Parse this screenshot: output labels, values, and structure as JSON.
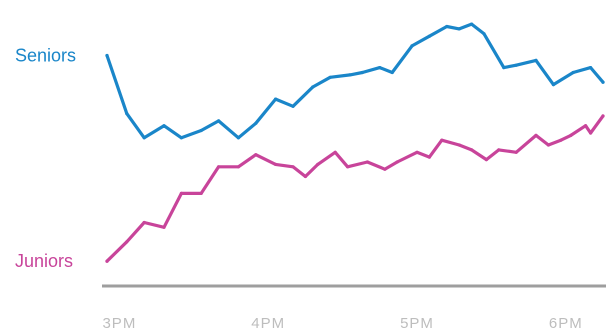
{
  "chart_data": {
    "type": "line",
    "title": "",
    "xlabel": "",
    "ylabel": "",
    "x_ticks": [
      "3PM",
      "4PM",
      "5PM",
      "6PM"
    ],
    "x_range": [
      "2:55PM",
      "6:15PM"
    ],
    "grid": false,
    "legend": "none (series labelled directly at left)",
    "axis_color": "#9e9e9e",
    "tick_color": "#bdbdbd",
    "series": [
      {
        "name": "Seniors",
        "color": "#1a86c9",
        "x": [
          "2:55PM",
          "3:03PM",
          "3:10PM",
          "3:18PM",
          "3:25PM",
          "3:33PM",
          "3:40PM",
          "3:48PM",
          "3:55PM",
          "4:03PM",
          "4:10PM",
          "4:18PM",
          "4:25PM",
          "4:33PM",
          "4:38PM",
          "4:45PM",
          "4:50PM",
          "4:58PM",
          "5:05PM",
          "5:12PM",
          "5:17PM",
          "5:22PM",
          "5:27PM",
          "5:35PM",
          "5:40PM",
          "5:48PM",
          "5:55PM",
          "6:03PM",
          "6:10PM",
          "6:15PM"
        ],
        "values": [
          87,
          63,
          53,
          58,
          53,
          56,
          60,
          53,
          59,
          69,
          66,
          74,
          78,
          79,
          80,
          82,
          80,
          91,
          95,
          99,
          98,
          100,
          96,
          82,
          83,
          85,
          75,
          80,
          82,
          76
        ]
      },
      {
        "name": "Juniors",
        "color": "#c8449a",
        "x": [
          "2:55PM",
          "3:03PM",
          "3:10PM",
          "3:18PM",
          "3:25PM",
          "3:33PM",
          "3:40PM",
          "3:48PM",
          "3:55PM",
          "4:03PM",
          "4:10PM",
          "4:15PM",
          "4:20PM",
          "4:27PM",
          "4:32PM",
          "4:40PM",
          "4:47PM",
          "4:52PM",
          "5:00PM",
          "5:05PM",
          "5:10PM",
          "5:17PM",
          "5:22PM",
          "5:28PM",
          "5:33PM",
          "5:40PM",
          "5:48PM",
          "5:53PM",
          "5:58PM",
          "6:02PM",
          "6:08PM",
          "6:10PM",
          "6:15PM"
        ],
        "values": [
          2,
          10,
          18,
          16,
          30,
          30,
          41,
          41,
          46,
          42,
          41,
          37,
          42,
          47,
          41,
          43,
          40,
          43,
          47,
          45,
          52,
          50,
          48,
          44,
          48,
          47,
          54,
          50,
          52,
          54,
          58,
          55,
          62
        ]
      }
    ],
    "ylim": [
      0,
      105
    ]
  }
}
